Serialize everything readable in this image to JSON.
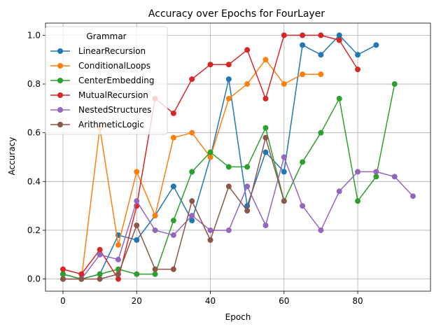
{
  "chart_data": {
    "type": "line",
    "title": "Accuracy over Epochs for FourLayer",
    "xlabel": "Epoch",
    "ylabel": "Accuracy",
    "xlim": [
      -4.75,
      99.75
    ],
    "ylim": [
      -0.05,
      1.05
    ],
    "xticks": [
      0,
      20,
      40,
      60,
      80
    ],
    "xtick_labels": [
      "0",
      "20",
      "40",
      "60",
      "80"
    ],
    "yticks": [
      0.0,
      0.2,
      0.4,
      0.6,
      0.8,
      1.0
    ],
    "ytick_labels": [
      "0.0",
      "0.2",
      "0.4",
      "0.6",
      "0.8",
      "1.0"
    ],
    "grid": true,
    "legend": {
      "title": "Grammar",
      "placement": "upper-left"
    },
    "series": [
      {
        "name": "LinearRecursion",
        "color": "#1f77b4",
        "x": [
          0,
          5,
          10,
          15,
          20,
          25,
          30,
          35,
          40,
          45,
          50,
          55,
          60,
          65,
          70,
          75,
          80,
          85
        ],
        "y": [
          0.02,
          0.0,
          0.02,
          0.18,
          0.16,
          0.26,
          0.38,
          0.24,
          0.5,
          0.82,
          0.3,
          0.52,
          0.44,
          0.96,
          0.92,
          1.0,
          0.92,
          0.96
        ]
      },
      {
        "name": "ConditionalLoops",
        "color": "#ff7f0e",
        "x": [
          0,
          5,
          10,
          15,
          20,
          25,
          30,
          35,
          40,
          45,
          50,
          55,
          60,
          65,
          70
        ],
        "y": [
          0.0,
          0.0,
          0.62,
          0.14,
          0.44,
          0.26,
          0.58,
          0.6,
          0.5,
          0.74,
          0.8,
          0.9,
          0.8,
          0.84,
          0.84
        ]
      },
      {
        "name": "CenterEmbedding",
        "color": "#2ca02c",
        "x": [
          0,
          5,
          10,
          15,
          20,
          25,
          30,
          35,
          40,
          45,
          50,
          55,
          60,
          65,
          70,
          75,
          80,
          85,
          90
        ],
        "y": [
          0.02,
          0.0,
          0.02,
          0.04,
          0.02,
          0.02,
          0.24,
          0.44,
          0.52,
          0.46,
          0.46,
          0.62,
          0.32,
          0.48,
          0.6,
          0.74,
          0.32,
          0.42,
          0.8
        ]
      },
      {
        "name": "MutualRecursion",
        "color": "#d62728",
        "x": [
          0,
          5,
          10,
          15,
          20,
          25,
          30,
          35,
          40,
          45,
          50,
          55,
          60,
          65,
          70,
          75,
          80
        ],
        "y": [
          0.04,
          0.02,
          0.12,
          0.0,
          0.3,
          0.74,
          0.68,
          0.82,
          0.88,
          0.88,
          0.94,
          0.74,
          1.0,
          1.0,
          1.0,
          0.98,
          0.86
        ]
      },
      {
        "name": "NestedStructures",
        "color": "#9467bd",
        "x": [
          0,
          5,
          10,
          15,
          20,
          25,
          30,
          35,
          40,
          45,
          50,
          55,
          60,
          65,
          70,
          75,
          80,
          85,
          90,
          95
        ],
        "y": [
          0.0,
          0.0,
          0.1,
          0.08,
          0.32,
          0.2,
          0.18,
          0.26,
          0.2,
          0.2,
          0.38,
          0.22,
          0.5,
          0.3,
          0.2,
          0.36,
          0.44,
          0.44,
          0.42,
          0.34
        ]
      },
      {
        "name": "ArithmeticLogic",
        "color": "#8c564b",
        "x": [
          0,
          5,
          10,
          15,
          20,
          25,
          30,
          35,
          40,
          45,
          50,
          55,
          60
        ],
        "y": [
          0.0,
          0.0,
          0.0,
          0.02,
          0.22,
          0.04,
          0.04,
          0.32,
          0.16,
          0.38,
          0.28,
          0.58,
          0.32
        ]
      }
    ]
  }
}
